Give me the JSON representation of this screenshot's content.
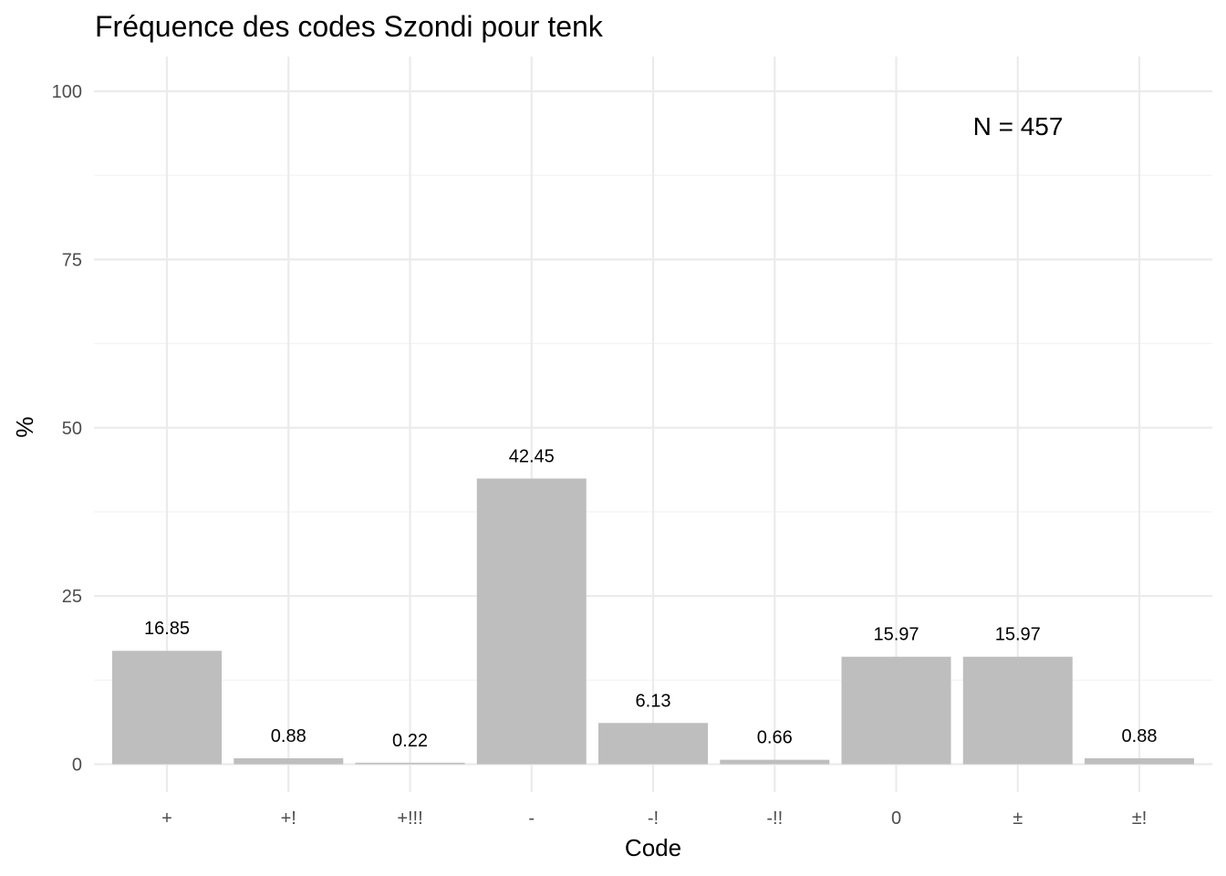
{
  "chart_data": {
    "type": "bar",
    "title": "Fréquence des codes Szondi pour tenk",
    "xlabel": "Code",
    "ylabel": "%",
    "categories": [
      "+",
      "+!",
      "+!!!",
      "-",
      "-!",
      "-!!",
      "0",
      "±",
      "±!"
    ],
    "values": [
      16.85,
      0.88,
      0.22,
      42.45,
      6.13,
      0.66,
      15.97,
      15.97,
      0.88
    ],
    "value_labels": [
      "16.85",
      "0.88",
      "0.22",
      "42.45",
      "6.13",
      "0.66",
      "15.97",
      "15.97",
      "0.88"
    ],
    "ylim": [
      0,
      100
    ],
    "yticks": [
      0,
      25,
      50,
      75,
      100
    ],
    "ytick_labels": [
      "0",
      "25",
      "50",
      "75",
      "100"
    ],
    "grid": true,
    "annotation": "N = 457",
    "bar_color": "#bebebe",
    "legend": "none"
  }
}
